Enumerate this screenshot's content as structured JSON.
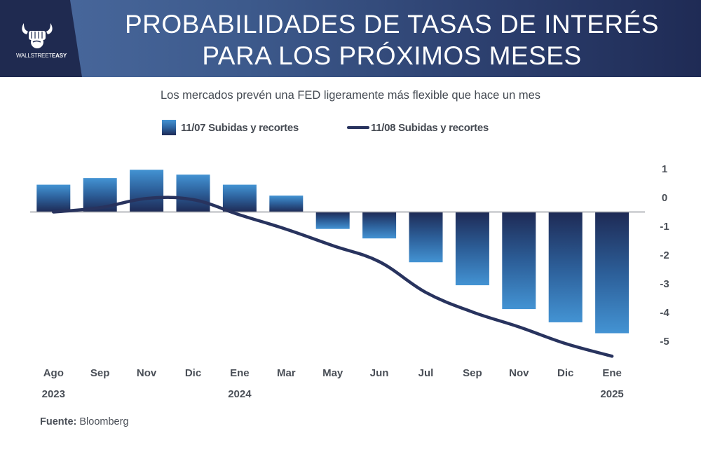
{
  "header": {
    "brand_regular": "WALLSTREET",
    "brand_bold": "EASY",
    "logo_icon": "horned-fist-icon",
    "title_line1": "PROBABILIDADES DE TASAS DE INTERÉS",
    "title_line2": "PARA LOS PRÓXIMOS MESES"
  },
  "footer": {
    "source_label": "Fuente:",
    "source_value": "Bloomberg"
  },
  "colors": {
    "bar_dark": "#1e2a55",
    "bar_light": "#4393d3",
    "line": "#28335e",
    "header_dark": "#1f2a50"
  },
  "chart_data": {
    "type": "bar",
    "title": "PROBABILIDADES DE TASAS DE INTERÉS PARA LOS PRÓXIMOS MESES",
    "subtitle": "Los mercados prevén una FED ligeramente más flexible que hace un mes",
    "xlabel": "",
    "ylabel": "",
    "categories": [
      "Ago",
      "Sep",
      "Nov",
      "Dic",
      "Ene",
      "Mar",
      "May",
      "Jun",
      "Jul",
      "Sep",
      "Nov",
      "Dic",
      "Ene"
    ],
    "category_years": [
      "2023",
      "",
      "",
      "",
      "2024",
      "",
      "",
      "",
      "",
      "",
      "",
      "",
      "2025"
    ],
    "series": [
      {
        "name": "11/07 Subidas y recortes",
        "type": "bar",
        "values": [
          0.95,
          1.18,
          1.47,
          1.3,
          0.95,
          0.57,
          -0.59,
          -0.92,
          -1.75,
          -2.55,
          -3.38,
          -3.84,
          -4.22
        ]
      },
      {
        "name": "11/08 Subidas y recortes",
        "type": "line",
        "values": [
          0.0,
          0.15,
          0.47,
          0.43,
          -0.1,
          -0.6,
          -1.17,
          -1.73,
          -2.8,
          -3.48,
          -4.0,
          -4.58,
          -5.02
        ]
      }
    ],
    "yticks": [
      1,
      0,
      -1,
      -2,
      -3,
      -4,
      -5
    ],
    "ylim": [
      -5.2,
      1.6
    ],
    "y_axis_position": "right",
    "grid": false,
    "legend_position": "top-center"
  }
}
